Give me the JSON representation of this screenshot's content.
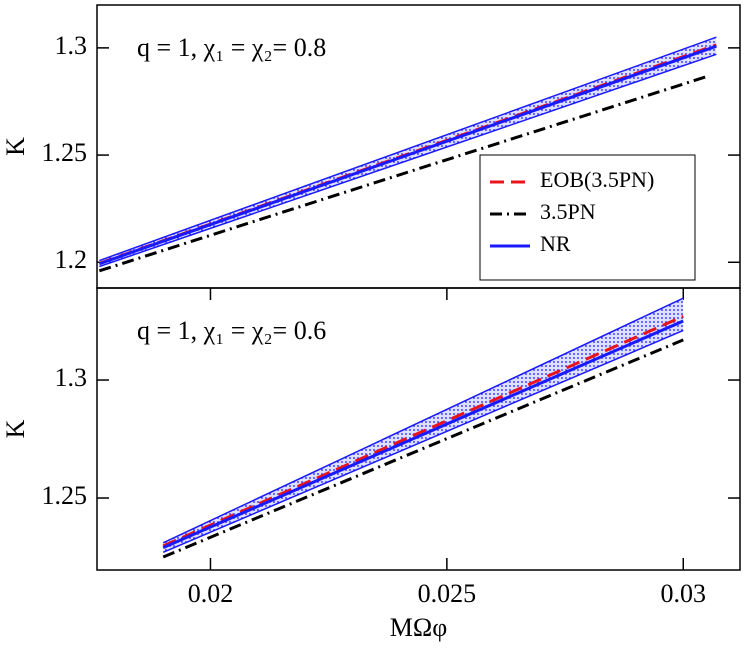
{
  "chart_data": [
    {
      "type": "line",
      "annotation": "q = 1, χ₁ = χ₂= 0.8",
      "y_label": "K",
      "xlim": [
        0.0176,
        0.0312
      ],
      "ylim": [
        1.188,
        1.32
      ],
      "yticks": [
        1.2,
        1.25,
        1.3
      ],
      "legend": "lower right",
      "series": [
        {
          "name": "EOB(3.5PN)",
          "color": "#e8141c",
          "dash": "dashed",
          "x": [
            0.01765,
            0.0307
          ],
          "values": [
            1.1995,
            1.3014
          ]
        },
        {
          "name": "3.5PN",
          "color": "#000000",
          "dash": "dashdot",
          "x": [
            0.01765,
            0.03055
          ],
          "values": [
            1.196,
            1.287
          ]
        },
        {
          "name": "NR",
          "color": "#1a1aff",
          "dash": "solid",
          "x": [
            0.01765,
            0.0307
          ],
          "values": [
            1.1993,
            1.3008
          ],
          "band_lower": [
            1.198,
            1.297
          ],
          "band_upper": [
            1.2008,
            1.305
          ]
        }
      ]
    },
    {
      "type": "line",
      "annotation": "q = 1, χ₁ = χ₂= 0.6",
      "y_label": "K",
      "x_label": "MΩφ",
      "xlim": [
        0.0176,
        0.0312
      ],
      "ylim": [
        1.2195,
        1.339
      ],
      "xticks": [
        0.02,
        0.025,
        0.03
      ],
      "yticks": [
        1.25,
        1.3
      ],
      "series": [
        {
          "name": "EOB(3.5PN)",
          "color": "#e8141c",
          "dash": "dashed",
          "x": [
            0.019,
            0.03
          ],
          "values": [
            1.2297,
            1.327
          ]
        },
        {
          "name": "3.5PN",
          "color": "#000000",
          "dash": "dashdot",
          "x": [
            0.019,
            0.03
          ],
          "values": [
            1.225,
            1.317
          ]
        },
        {
          "name": "NR",
          "color": "#1a1aff",
          "dash": "solid",
          "x": [
            0.019,
            0.03
          ],
          "values": [
            1.229,
            1.325
          ],
          "band_lower": [
            1.227,
            1.321
          ],
          "band_upper": [
            1.231,
            1.3347
          ]
        }
      ]
    }
  ]
}
